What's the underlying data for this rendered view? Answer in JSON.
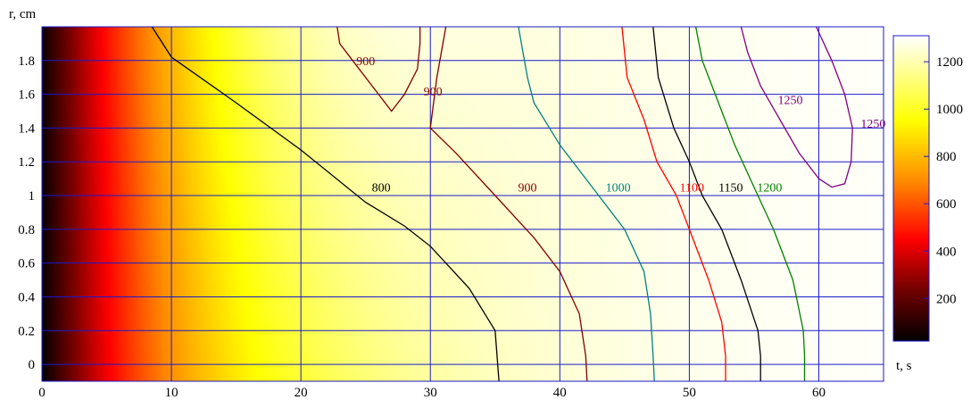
{
  "chart_data": {
    "type": "heatmap",
    "title": "",
    "xlabel": "t, s",
    "ylabel": "r, cm",
    "xlim": [
      0,
      65
    ],
    "ylim": [
      -0.1,
      2.0
    ],
    "x_ticks": [
      "0",
      "10",
      "20",
      "30",
      "40",
      "50",
      "60"
    ],
    "y_ticks": [
      "0",
      "0.2",
      "0.4",
      "0.6",
      "0.8",
      "1",
      "1.2",
      "1.4",
      "1.6",
      "1.8"
    ],
    "grid": true,
    "grid_color": "#1a1acc",
    "colorbar": {
      "range": [
        20,
        1310
      ],
      "ticks": [
        "200",
        "400",
        "600",
        "800",
        "1000",
        "1200"
      ],
      "stops": [
        {
          "v": 20,
          "color": "#000000"
        },
        {
          "v": 250,
          "color": "#7a0000"
        },
        {
          "v": 450,
          "color": "#ff0000"
        },
        {
          "v": 700,
          "color": "#ff8c00"
        },
        {
          "v": 950,
          "color": "#ffff00"
        },
        {
          "v": 1310,
          "color": "#ffffff"
        }
      ]
    },
    "contours": [
      {
        "level": "800",
        "color": "#000000",
        "points": [
          [
            8.5,
            2.0
          ],
          [
            10,
            1.82
          ],
          [
            15,
            1.55
          ],
          [
            20,
            1.27
          ],
          [
            25,
            0.96
          ],
          [
            28,
            0.82
          ],
          [
            30,
            0.7
          ],
          [
            33,
            0.45
          ],
          [
            35,
            0.2
          ],
          [
            35.3,
            -0.1
          ]
        ],
        "labels": [
          {
            "text": "800",
            "x": 26.2,
            "y": 1.05
          }
        ]
      },
      {
        "level": "900",
        "color": "#800000",
        "points": [
          [
            31.2,
            2.0
          ],
          [
            30.5,
            1.7
          ],
          [
            30,
            1.4
          ],
          [
            32,
            1.25
          ],
          [
            35,
            1.0
          ],
          [
            38,
            0.75
          ],
          [
            40,
            0.55
          ],
          [
            41.5,
            0.3
          ],
          [
            42,
            0.05
          ],
          [
            42.1,
            -0.1
          ]
        ],
        "labels": [
          {
            "text": "900",
            "x": 37.5,
            "y": 1.05
          }
        ]
      },
      {
        "level": "900",
        "color": "#800000",
        "points": [
          [
            22.8,
            2.0
          ],
          [
            23,
            1.9
          ],
          [
            24.5,
            1.75
          ],
          [
            26,
            1.6
          ],
          [
            27,
            1.5
          ],
          [
            28,
            1.6
          ],
          [
            29,
            1.75
          ],
          [
            29.2,
            1.9
          ],
          [
            29.2,
            2.0
          ]
        ],
        "labels": [
          {
            "text": "900",
            "x": 25,
            "y": 1.8
          },
          {
            "text": "900",
            "x": 30.2,
            "y": 1.62
          }
        ]
      },
      {
        "level": "1000",
        "color": "#008080",
        "points": [
          [
            36.8,
            2.0
          ],
          [
            37.5,
            1.7
          ],
          [
            38,
            1.55
          ],
          [
            40,
            1.3
          ],
          [
            43,
            1.0
          ],
          [
            45,
            0.8
          ],
          [
            46.5,
            0.55
          ],
          [
            47,
            0.3
          ],
          [
            47.2,
            0.05
          ],
          [
            47.3,
            -0.1
          ]
        ],
        "labels": [
          {
            "text": "1000",
            "x": 44.5,
            "y": 1.05
          }
        ]
      },
      {
        "level": "1100",
        "color": "#ff0000",
        "points": [
          [
            44.8,
            2.0
          ],
          [
            45.2,
            1.7
          ],
          [
            46.5,
            1.45
          ],
          [
            47.5,
            1.2
          ],
          [
            49,
            1.0
          ],
          [
            50,
            0.8
          ],
          [
            51.5,
            0.5
          ],
          [
            52.5,
            0.25
          ],
          [
            52.8,
            0.05
          ],
          [
            52.8,
            -0.1
          ]
        ],
        "labels": [
          {
            "text": "1100",
            "x": 50.2,
            "y": 1.05
          }
        ]
      },
      {
        "level": "1150",
        "color": "#000000",
        "points": [
          [
            47.2,
            2.0
          ],
          [
            47.6,
            1.7
          ],
          [
            48.8,
            1.4
          ],
          [
            50,
            1.2
          ],
          [
            51,
            1.0
          ],
          [
            52.5,
            0.8
          ],
          [
            54,
            0.5
          ],
          [
            55.3,
            0.2
          ],
          [
            55.5,
            0.05
          ],
          [
            55.5,
            -0.1
          ]
        ],
        "labels": [
          {
            "text": "1150",
            "x": 53.2,
            "y": 1.05
          }
        ]
      },
      {
        "level": "1200",
        "color": "#008000",
        "points": [
          [
            50.5,
            2.0
          ],
          [
            51,
            1.8
          ],
          [
            52,
            1.6
          ],
          [
            53.5,
            1.3
          ],
          [
            55,
            1.05
          ],
          [
            56.5,
            0.8
          ],
          [
            58,
            0.5
          ],
          [
            58.8,
            0.2
          ],
          [
            58.9,
            0.05
          ],
          [
            58.9,
            -0.1
          ]
        ],
        "labels": [
          {
            "text": "1200",
            "x": 56.2,
            "y": 1.05
          }
        ]
      },
      {
        "level": "1250",
        "color": "#800080",
        "points": [
          [
            54,
            2.0
          ],
          [
            54.5,
            1.85
          ],
          [
            55.5,
            1.65
          ],
          [
            57,
            1.45
          ],
          [
            58.5,
            1.25
          ],
          [
            60,
            1.1
          ],
          [
            61,
            1.05
          ],
          [
            62,
            1.07
          ],
          [
            62.5,
            1.2
          ],
          [
            62.6,
            1.4
          ],
          [
            62,
            1.6
          ],
          [
            61,
            1.8
          ],
          [
            59.8,
            2.0
          ]
        ],
        "labels": [
          {
            "text": "1250",
            "x": 57.8,
            "y": 1.57
          },
          {
            "text": "1250",
            "x": 64.2,
            "y": 1.43
          }
        ]
      }
    ]
  }
}
